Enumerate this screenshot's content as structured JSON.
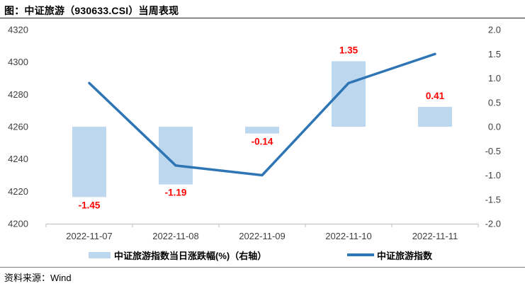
{
  "header": {
    "title": "图：中证旅游（930633.CSI）当周表现"
  },
  "legend": {
    "items": [
      {
        "label": "中证旅游指数当日涨跌幅(%)（右轴）",
        "swatch": "bar-swatch"
      },
      {
        "label": "中证旅游指数",
        "swatch": "line-swatch"
      }
    ]
  },
  "footer": {
    "source_label": "资料来源：Wind"
  },
  "colors": {
    "bar_fill": "#BDD7EE",
    "line": "#2E75B6",
    "data_label": "#FF0000",
    "axis_text": "#3f3f3f",
    "axis_line": "#BFBFBF",
    "title_rule": "#262626",
    "footer_rule": "#7f7f7f"
  },
  "chart_data": {
    "type": "combo",
    "title": "图：中证旅游（930633.CSI）当周表现",
    "categories": [
      "2022-11-07",
      "2022-11-08",
      "2022-11-09",
      "2022-11-10",
      "2022-11-11"
    ],
    "series": [
      {
        "name": "中证旅游指数当日涨跌幅(%)（右轴）",
        "type": "bar",
        "axis": "right",
        "values": [
          -1.45,
          -1.19,
          -0.14,
          1.35,
          0.41
        ],
        "data_labels": [
          "-1.45",
          "-1.19",
          "-0.14",
          "1.35",
          "0.41"
        ],
        "color": "#BDD7EE"
      },
      {
        "name": "中证旅游指数",
        "type": "line",
        "axis": "left",
        "values": [
          4287,
          4236,
          4230,
          4287,
          4305
        ],
        "color": "#2E75B6"
      }
    ],
    "left_axis": {
      "min": 4200,
      "max": 4320,
      "tick_step": 20,
      "ticks": [
        "4320",
        "4300",
        "4280",
        "4260",
        "4240",
        "4220",
        "4200"
      ]
    },
    "right_axis": {
      "min": -2.0,
      "max": 2.0,
      "tick_step": 0.5,
      "ticks": [
        "2.0",
        "1.5",
        "1.0",
        "0.5",
        "0.0",
        "-0.5",
        "-1.0",
        "-1.5",
        "-2.0"
      ]
    },
    "grid": false,
    "legend_position": "bottom",
    "source": "Wind"
  }
}
